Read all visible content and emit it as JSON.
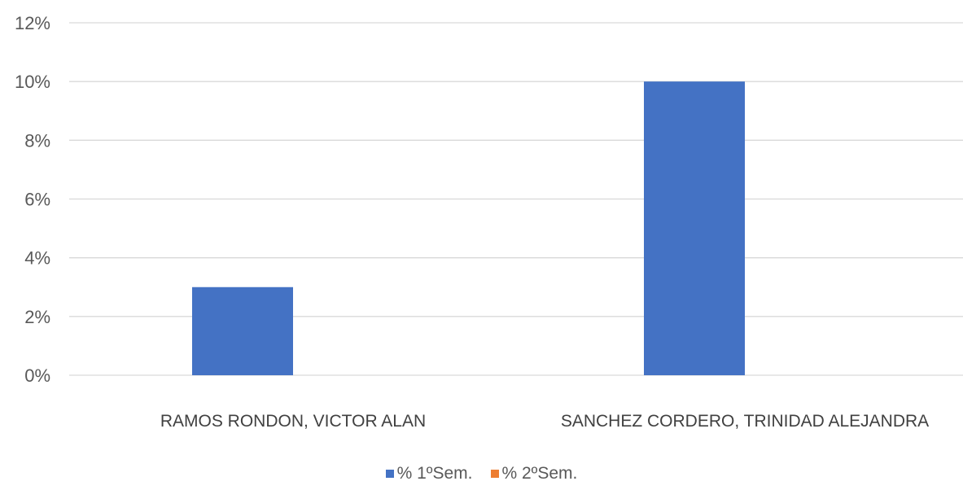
{
  "chart_data": {
    "type": "bar",
    "categories": [
      "RAMOS RONDON, VICTOR ALAN",
      "SANCHEZ CORDERO, TRINIDAD ALEJANDRA"
    ],
    "series": [
      {
        "name": "% 1ºSem.",
        "values": [
          0.03,
          0.1
        ],
        "color": "#4472c4"
      },
      {
        "name": "% 2ºSem.",
        "values": [
          0,
          0
        ],
        "color": "#ed7d31"
      }
    ],
    "y_ticks": [
      "0%",
      "2%",
      "4%",
      "6%",
      "8%",
      "10%",
      "12%"
    ],
    "ylim": [
      0,
      0.12
    ],
    "grid": true,
    "legend_position": "bottom"
  }
}
